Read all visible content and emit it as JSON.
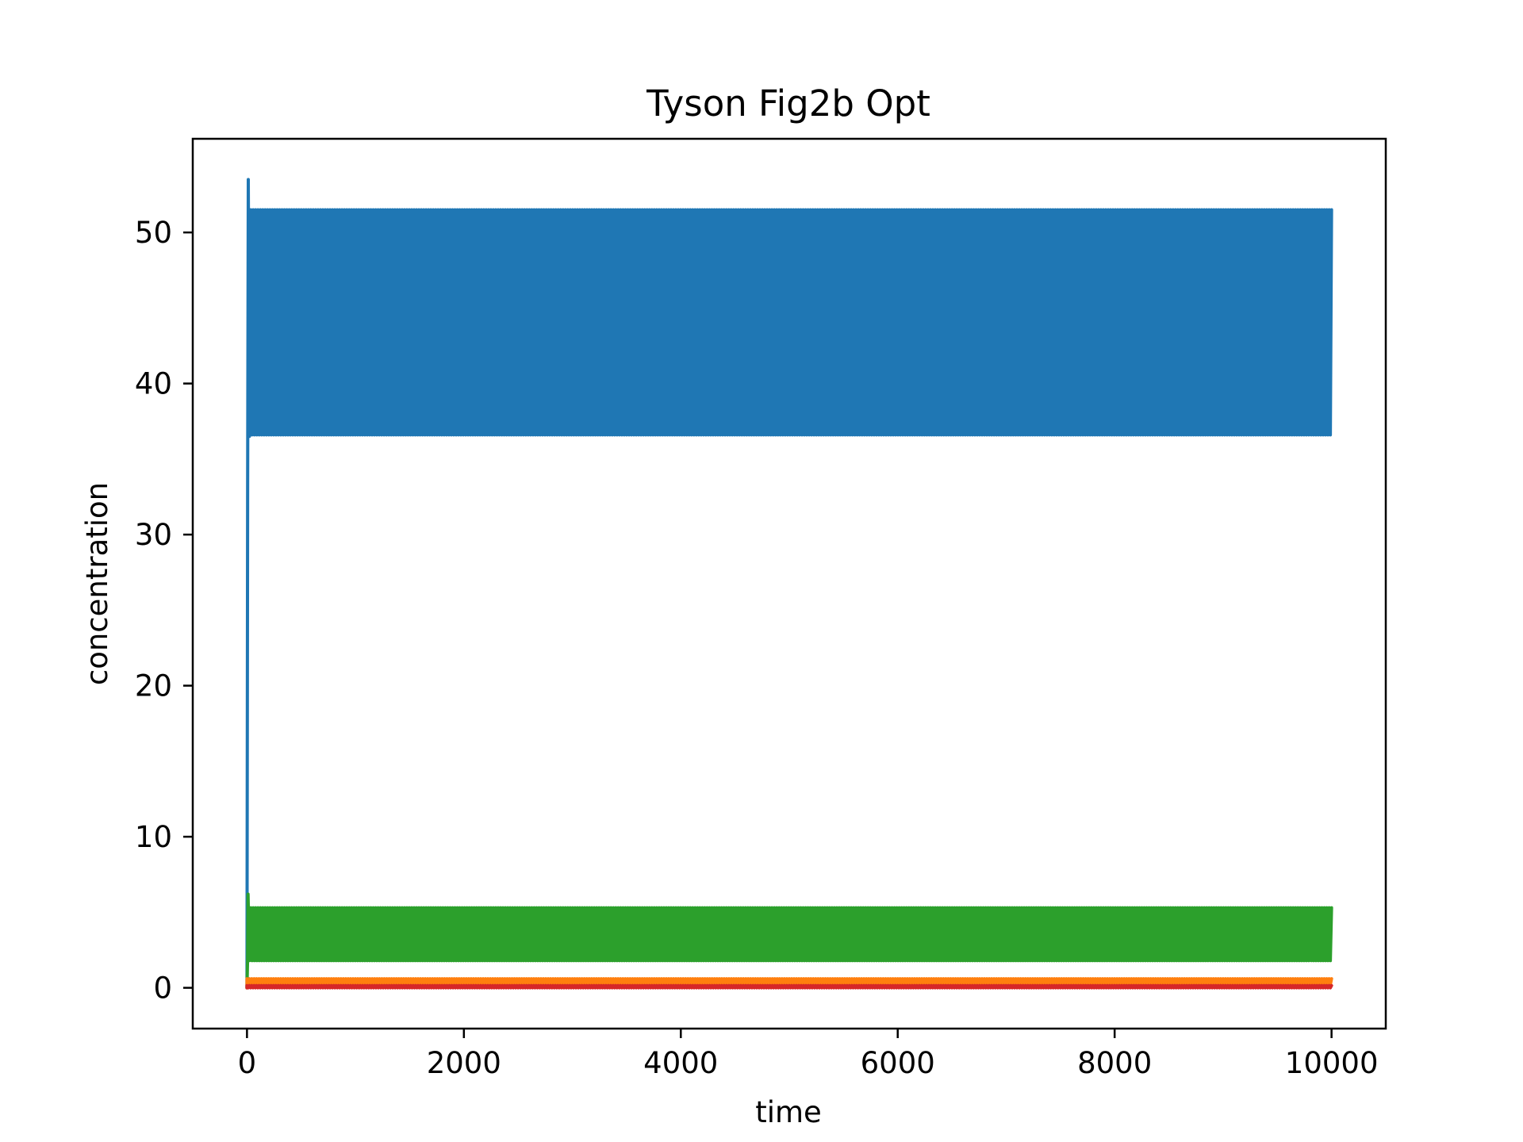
{
  "chart_data": {
    "type": "line",
    "title": "Tyson Fig2b Opt",
    "xlabel": "time",
    "ylabel": "concentration",
    "xlim": [
      -500,
      10500
    ],
    "ylim": [
      -2.7,
      56.2
    ],
    "xticks": [
      0,
      2000,
      4000,
      6000,
      8000,
      10000
    ],
    "yticks": [
      0,
      10,
      20,
      30,
      40,
      50
    ],
    "grid": false,
    "legend": "none",
    "series": [
      {
        "color": "#1f77b4",
        "kind": "oscillation-band",
        "initial": [
          [
            0,
            0
          ],
          [
            6,
            33
          ],
          [
            12,
            53.5
          ],
          [
            22,
            36.5
          ],
          [
            35,
            51.5
          ]
        ],
        "x_range": [
          0,
          10000
        ],
        "low": 36.6,
        "high": 51.5
      },
      {
        "color": "#2ca02c",
        "kind": "oscillation-band",
        "initial": [
          [
            0,
            0
          ],
          [
            6,
            2.0
          ],
          [
            10,
            6.2
          ],
          [
            22,
            1.8
          ],
          [
            35,
            5.3
          ]
        ],
        "x_range": [
          0,
          10000
        ],
        "low": 1.8,
        "high": 5.3
      },
      {
        "color": "#ff7f0e",
        "kind": "oscillation-band",
        "initial": [
          [
            0,
            0
          ]
        ],
        "x_range": [
          0,
          10000
        ],
        "low": 0.2,
        "high": 0.6
      },
      {
        "color": "#d62728",
        "kind": "oscillation-band",
        "initial": [
          [
            0,
            0
          ]
        ],
        "x_range": [
          0,
          10000
        ],
        "low": 0.0,
        "high": 0.15
      }
    ]
  }
}
